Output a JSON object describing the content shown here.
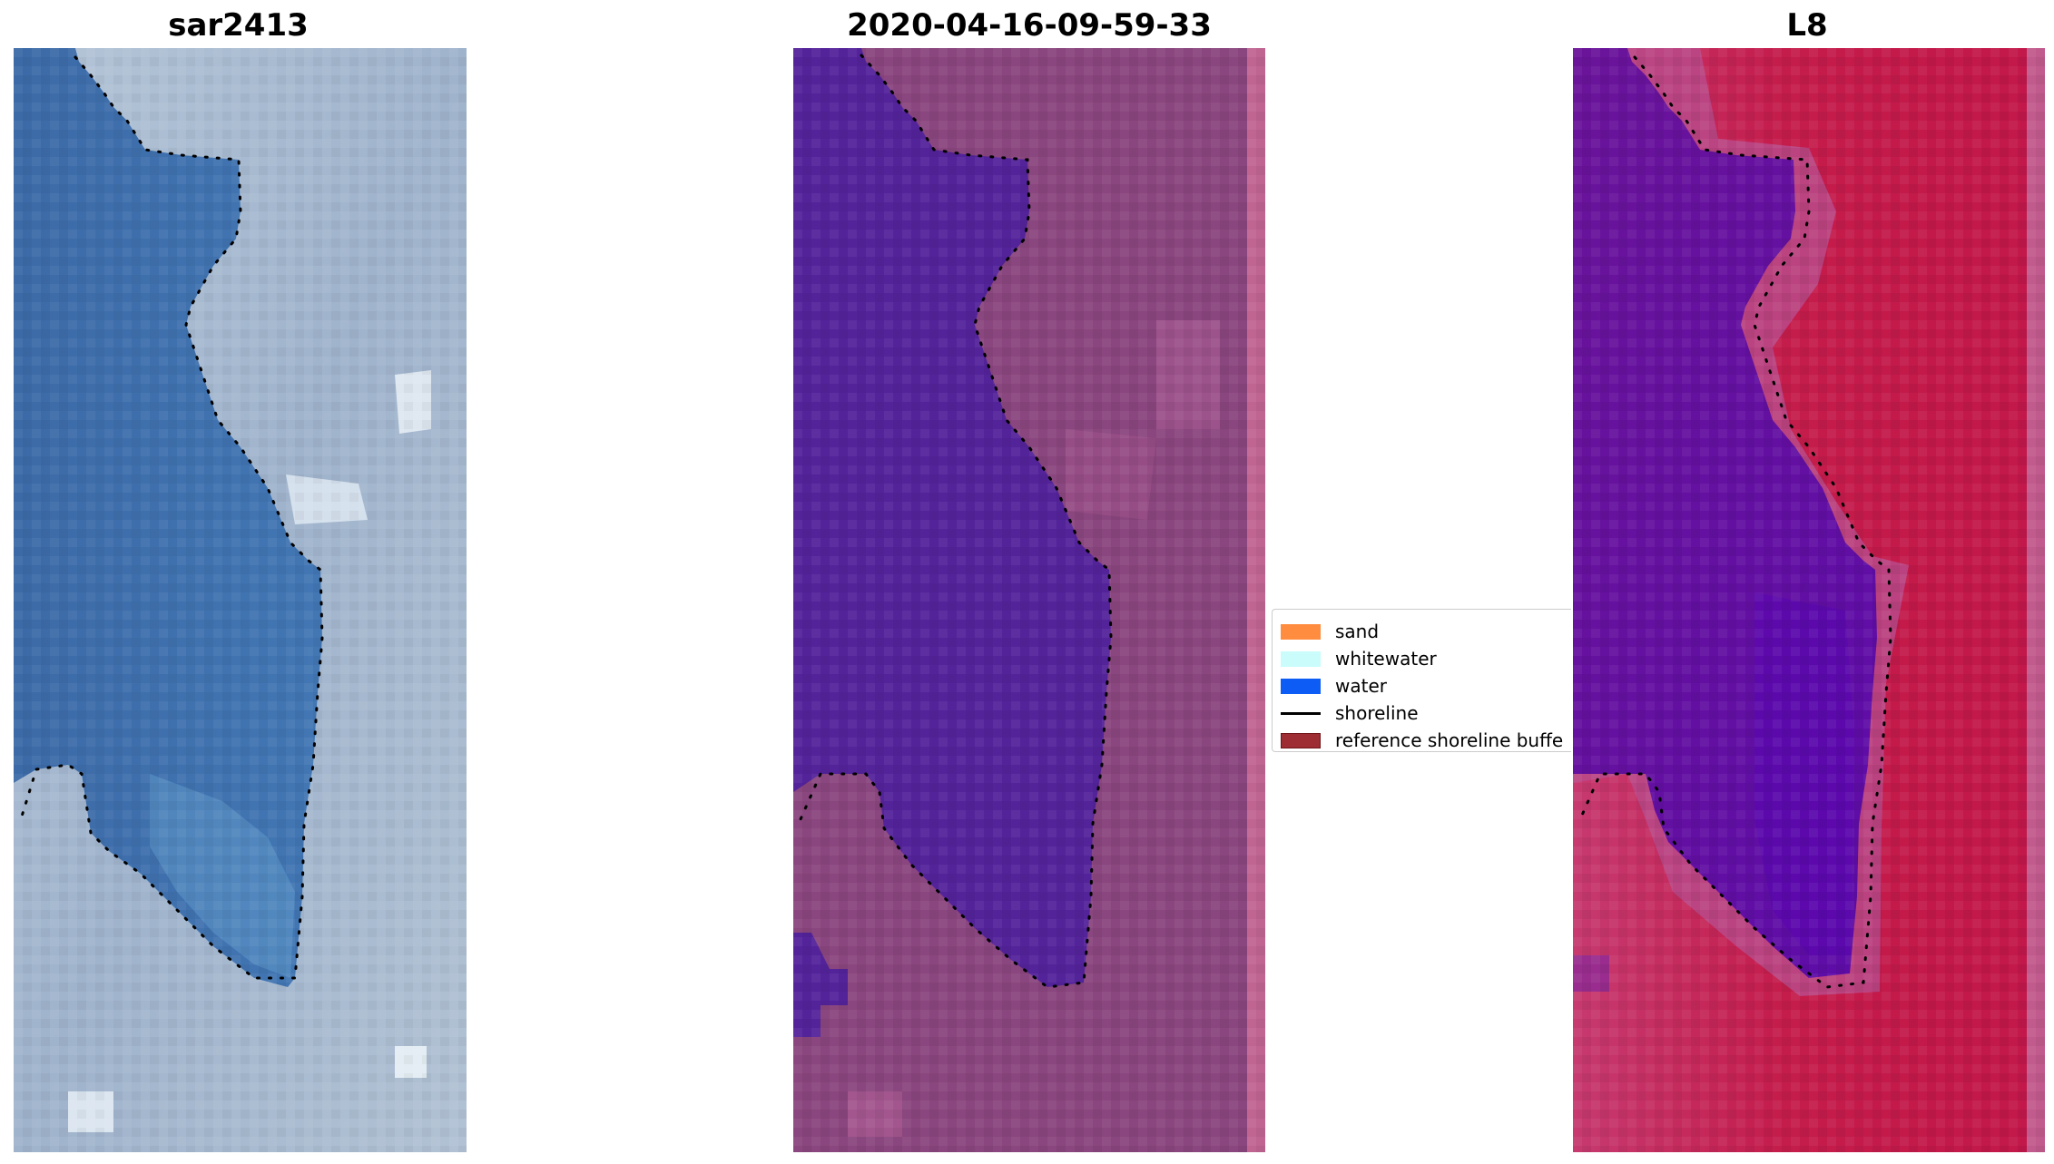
{
  "figure": {
    "panels": [
      {
        "title": "sar2413",
        "type": "rgb-image"
      },
      {
        "title": "2020-04-16-09-59-33",
        "type": "classified-image"
      },
      {
        "title": "L8",
        "type": "false-color-image"
      }
    ]
  },
  "legend": {
    "items": [
      {
        "label": "sand",
        "color": "#ff8c3f",
        "kind": "patch"
      },
      {
        "label": "whitewater",
        "color": "#c9fcfb",
        "kind": "patch"
      },
      {
        "label": "water",
        "color": "#0c5cf5",
        "kind": "patch"
      },
      {
        "label": "shoreline",
        "color": "#000000",
        "kind": "line"
      },
      {
        "label": "reference shoreline buffe",
        "color": "#9e2c33",
        "kind": "patch"
      }
    ]
  },
  "colors": {
    "rgb_water": "#3b6aa6",
    "rgb_land": "#a3b7cf",
    "classified_water": "#53239a",
    "classified_land": "#8c447c",
    "false_color_water": "#6a149a",
    "false_color_land": "#c41c4b",
    "shoreline": "#000000"
  }
}
